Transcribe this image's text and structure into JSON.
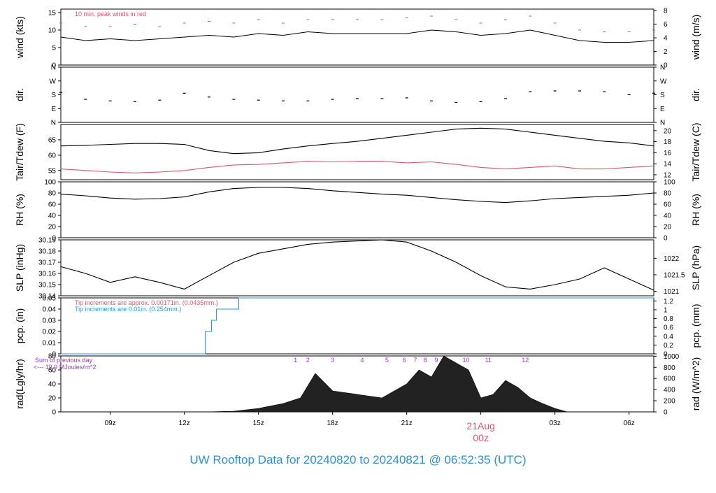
{
  "footer_title": "UW Rooftop Data for 20240820  to  20240821 @ 06:52:35  (UTC)",
  "colors": {
    "black": "#000000",
    "red": "#df536b",
    "blue": "#2297e6",
    "purple": "#9933cc"
  },
  "chart_data": [
    {
      "type": "line",
      "ylabel": "wind (kts)",
      "ylabel_right": "wind (m/s)",
      "ylim": [
        0,
        16
      ],
      "yticks": [
        0,
        5,
        10,
        15
      ],
      "right_ticks": [
        0,
        2,
        4,
        6,
        8
      ],
      "annotations": [
        "10 min. peak winds in red"
      ],
      "series": [
        {
          "color": "#000000",
          "x": [
            7,
            8,
            9,
            10,
            11,
            12,
            13,
            14,
            15,
            16,
            17,
            18,
            19,
            20,
            21,
            22,
            23,
            24,
            25,
            26,
            27,
            28,
            29,
            30,
            31
          ],
          "values": [
            8,
            7,
            7.5,
            7,
            7.5,
            8,
            8.5,
            8,
            9,
            8.5,
            9.5,
            9,
            9,
            9,
            9,
            10,
            9.5,
            8.5,
            9,
            10,
            8.5,
            7,
            6.5,
            6.5,
            7
          ]
        },
        {
          "color": "#df536b",
          "x": [
            7,
            8,
            9,
            10,
            11,
            12,
            13,
            14,
            15,
            16,
            17,
            18,
            19,
            20,
            21,
            22,
            23,
            24,
            25,
            26,
            27,
            28,
            29,
            30,
            31
          ],
          "values": [
            12,
            11,
            11,
            11.5,
            11,
            12,
            12.5,
            12,
            13,
            12,
            13,
            13,
            13,
            13,
            13.5,
            14,
            13,
            12,
            13,
            14,
            12,
            10,
            9.5,
            9.5,
            10
          ]
        }
      ]
    },
    {
      "type": "scatter",
      "ylabel": "dir.",
      "ylabel_right": "dir.",
      "ylim": [
        0,
        360
      ],
      "yticks": [
        "N",
        "E",
        "S",
        "W",
        "N"
      ],
      "series": [
        {
          "color": "#000000",
          "x": [
            7,
            8,
            9,
            10,
            11,
            12,
            13,
            14,
            15,
            16,
            17,
            18,
            19,
            20,
            21,
            22,
            23,
            24,
            25,
            26,
            27,
            28,
            29,
            30,
            31
          ],
          "values": [
            195,
            150,
            140,
            135,
            145,
            190,
            165,
            150,
            145,
            140,
            140,
            150,
            155,
            155,
            160,
            140,
            130,
            135,
            155,
            200,
            205,
            205,
            200,
            180,
            190
          ]
        }
      ]
    },
    {
      "type": "line",
      "ylabel": "Tair/Tdew (F)",
      "ylabel_right": "Tair/Tdew (C)",
      "ylim": [
        52,
        70
      ],
      "yticks": [
        55,
        60,
        65
      ],
      "right_ticks": [
        12,
        14,
        16,
        18,
        20
      ],
      "series": [
        {
          "color": "#000000",
          "x": [
            7,
            8,
            9,
            10,
            11,
            12,
            13,
            14,
            15,
            16,
            17,
            18,
            19,
            20,
            21,
            22,
            23,
            24,
            25,
            26,
            27,
            28,
            29,
            30,
            31
          ],
          "values": [
            63,
            63.2,
            63.5,
            63.8,
            63.8,
            63.5,
            61.5,
            60.5,
            60.8,
            62,
            63,
            63.8,
            64.5,
            65.5,
            66.5,
            67.5,
            68.5,
            68.8,
            68.5,
            67.5,
            66.5,
            65.5,
            64.5,
            64,
            63
          ]
        },
        {
          "color": "#df536b",
          "x": [
            7,
            8,
            9,
            10,
            11,
            12,
            13,
            14,
            15,
            16,
            17,
            18,
            19,
            20,
            21,
            22,
            23,
            24,
            25,
            26,
            27,
            28,
            29,
            30,
            31
          ],
          "values": [
            55.5,
            55,
            54.5,
            54.2,
            54.5,
            55,
            56,
            56.8,
            57,
            57.5,
            58,
            57.8,
            58,
            58,
            57.5,
            57.8,
            57,
            56,
            55.5,
            56,
            56.5,
            55.5,
            55.5,
            56,
            56.5
          ]
        }
      ]
    },
    {
      "type": "line",
      "ylabel": "RH (%)",
      "ylabel_right": "RH (%)",
      "ylim": [
        0,
        100
      ],
      "yticks": [
        0,
        20,
        40,
        60,
        80,
        100
      ],
      "right_ticks": [
        0,
        20,
        40,
        60,
        80,
        100
      ],
      "series": [
        {
          "color": "#000000",
          "x": [
            7,
            8,
            9,
            10,
            11,
            12,
            13,
            14,
            15,
            16,
            17,
            18,
            19,
            20,
            21,
            22,
            23,
            24,
            25,
            26,
            27,
            28,
            29,
            30,
            31
          ],
          "values": [
            78,
            75,
            71,
            69,
            70,
            73,
            82,
            88,
            90,
            90,
            88,
            84,
            81,
            78,
            76,
            72,
            68,
            65,
            63,
            66,
            70,
            72,
            74,
            76,
            80
          ]
        }
      ]
    },
    {
      "type": "line",
      "ylabel": "SLP (inHg)",
      "ylabel_right": "SLP (hPa)",
      "ylim": [
        30.14,
        30.19
      ],
      "yticks": [
        30.14,
        30.15,
        30.16,
        30.17,
        30.18,
        30.19
      ],
      "right_ticks": [
        1021,
        1021.5,
        1022
      ],
      "series": [
        {
          "color": "#000000",
          "x": [
            7,
            8,
            9,
            10,
            11,
            12,
            13,
            14,
            15,
            16,
            17,
            18,
            19,
            20,
            21,
            22,
            23,
            24,
            25,
            26,
            27,
            28,
            29,
            30,
            31
          ],
          "values": [
            30.166,
            30.16,
            30.152,
            30.157,
            30.152,
            30.146,
            30.158,
            30.17,
            30.178,
            30.182,
            30.186,
            30.188,
            30.189,
            30.19,
            30.188,
            30.18,
            30.17,
            30.158,
            30.148,
            30.146,
            30.15,
            30.155,
            30.165,
            30.155,
            30.145
          ]
        }
      ]
    },
    {
      "type": "line",
      "ylabel": "pcp. (in)",
      "ylabel_right": "pcp. (mm)",
      "ylim": [
        0,
        0.05
      ],
      "yticks": [
        0,
        0.01,
        0.02,
        0.03,
        0.04,
        0.05
      ],
      "right_ticks": [
        0,
        0.2,
        0.4,
        0.6,
        0.8,
        1,
        1.2
      ],
      "annotations": [
        "Tip increments are approx. 0.00171in. (0.0435mm.)",
        "Tip increments are 0.01in. (0.254mm.)"
      ],
      "series": [
        {
          "color": "#2297e6",
          "x": [
            7,
            12.8,
            12.85,
            13.0,
            13.1,
            13.3,
            14.1,
            14.2,
            31
          ],
          "values": [
            0,
            0,
            0.02,
            0.02,
            0.03,
            0.04,
            0.04,
            0.05,
            0.05
          ]
        }
      ]
    },
    {
      "type": "area",
      "ylabel": "rad(Lgly/hr)",
      "ylabel_right": "rad (W/m^2)",
      "ylim": [
        0,
        80
      ],
      "yticks": [
        0,
        20,
        40,
        60,
        80
      ],
      "right_ticks": [
        0,
        200,
        400,
        600,
        800,
        1000
      ],
      "annotations": [
        "Sum of previous day",
        "<--- 19.9 MJoules/m^2"
      ],
      "hour_marks": [
        "1",
        "2",
        "3",
        "4",
        "5",
        "6",
        "7",
        "8",
        "9",
        "10",
        "11",
        "12"
      ],
      "xticks": [
        "09z",
        "12z",
        "15z",
        "18z",
        "21z",
        "03z",
        "06z"
      ],
      "date_label": "21Aug",
      "date_sub": "00z",
      "series": [
        {
          "color": "#000000",
          "x": [
            12.8,
            14,
            15,
            16,
            16.7,
            17.3,
            18,
            19,
            20,
            21,
            21.5,
            22,
            22.5,
            23,
            23.5,
            24,
            24.5,
            25,
            25.5,
            26,
            26.5,
            27,
            27.5
          ],
          "values": [
            0,
            1,
            5,
            12,
            20,
            55,
            30,
            25,
            20,
            40,
            60,
            50,
            80,
            70,
            60,
            20,
            25,
            45,
            35,
            20,
            12,
            5,
            0
          ]
        }
      ]
    }
  ]
}
